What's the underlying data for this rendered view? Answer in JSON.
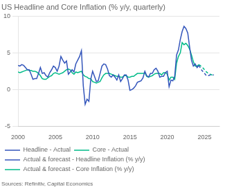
{
  "chart_data": {
    "type": "line",
    "title": "US Headline and Core Inflation (% y/y, quarterly)",
    "annotations": [
      "Sources: Refinitiv, Capital Economics"
    ],
    "xlim": [
      2000,
      2027
    ],
    "xticks": [
      2000,
      2005,
      2010,
      2015,
      2020,
      2025
    ],
    "ylim": [
      -5,
      10
    ],
    "yticks": [
      -5,
      0,
      5,
      10
    ],
    "grid": "y",
    "legend": "bottom",
    "series": [
      {
        "name": "Headline - Actual",
        "color": "#3355bb",
        "line_style": "solid",
        "x": [
          2000.0,
          2000.25,
          2000.5,
          2000.75,
          2001.0,
          2001.25,
          2001.5,
          2001.75,
          2002.0,
          2002.25,
          2002.5,
          2002.75,
          2003.0,
          2003.25,
          2003.5,
          2003.75,
          2004.0,
          2004.25,
          2004.5,
          2004.75,
          2005.0,
          2005.25,
          2005.5,
          2005.75,
          2006.0,
          2006.25,
          2006.5,
          2006.75,
          2007.0,
          2007.25,
          2007.5,
          2007.75,
          2008.0,
          2008.25,
          2008.5,
          2008.75,
          2009.0,
          2009.25,
          2009.5,
          2009.75,
          2010.0,
          2010.25,
          2010.5,
          2010.75,
          2011.0,
          2011.25,
          2011.5,
          2011.75,
          2012.0,
          2012.25,
          2012.5,
          2012.75,
          2013.0,
          2013.25,
          2013.5,
          2013.75,
          2014.0,
          2014.25,
          2014.5,
          2014.75,
          2015.0,
          2015.25,
          2015.5,
          2015.75,
          2016.0,
          2016.25,
          2016.5,
          2016.75,
          2017.0,
          2017.25,
          2017.5,
          2017.75,
          2018.0,
          2018.25,
          2018.5,
          2018.75,
          2019.0,
          2019.25,
          2019.5,
          2019.75,
          2020.0,
          2020.25,
          2020.5,
          2020.75,
          2021.0,
          2021.25,
          2021.5,
          2021.75,
          2022.0,
          2022.25,
          2022.5,
          2022.75,
          2023.0,
          2023.25,
          2023.5,
          2023.75,
          2024.0,
          2024.25
        ],
        "values": [
          3.3,
          3.2,
          3.4,
          3.3,
          3.0,
          2.7,
          2.7,
          2.1,
          1.4,
          1.5,
          1.5,
          2.2,
          3.0,
          2.2,
          2.3,
          1.9,
          1.7,
          2.3,
          2.7,
          3.2,
          3.0,
          2.5,
          3.2,
          4.5,
          4.0,
          3.6,
          3.9,
          2.1,
          2.4,
          2.7,
          2.4,
          3.5,
          4.0,
          4.5,
          5.3,
          0.5,
          -2.0,
          -1.3,
          -1.6,
          1.4,
          2.5,
          1.8,
          1.1,
          1.2,
          2.2,
          3.2,
          3.5,
          3.4,
          2.8,
          1.9,
          1.7,
          2.0,
          1.7,
          1.3,
          2.0,
          1.1,
          1.5,
          2.0,
          2.0,
          1.3,
          -0.1,
          0.0,
          0.2,
          0.5,
          1.0,
          1.1,
          1.2,
          1.6,
          2.5,
          1.9,
          1.7,
          2.2,
          2.2,
          2.7,
          2.9,
          2.5,
          1.7,
          1.8,
          1.8,
          2.3,
          2.5,
          0.4,
          1.3,
          1.2,
          1.8,
          4.7,
          5.4,
          6.8,
          7.9,
          8.6,
          8.3,
          7.7,
          5.8,
          4.0,
          3.2,
          3.5,
          3.0,
          3.3
        ]
      },
      {
        "name": "Core - Actual",
        "color": "#00bb88",
        "line_style": "solid",
        "x": [
          2000.0,
          2000.25,
          2000.5,
          2000.75,
          2001.0,
          2001.25,
          2001.5,
          2001.75,
          2002.0,
          2002.25,
          2002.5,
          2002.75,
          2003.0,
          2003.25,
          2003.5,
          2003.75,
          2004.0,
          2004.25,
          2004.5,
          2004.75,
          2005.0,
          2005.25,
          2005.5,
          2005.75,
          2006.0,
          2006.25,
          2006.5,
          2006.75,
          2007.0,
          2007.25,
          2007.5,
          2007.75,
          2008.0,
          2008.25,
          2008.5,
          2008.75,
          2009.0,
          2009.25,
          2009.5,
          2009.75,
          2010.0,
          2010.25,
          2010.5,
          2010.75,
          2011.0,
          2011.25,
          2011.5,
          2011.75,
          2012.0,
          2012.25,
          2012.5,
          2012.75,
          2013.0,
          2013.25,
          2013.5,
          2013.75,
          2014.0,
          2014.25,
          2014.5,
          2014.75,
          2015.0,
          2015.25,
          2015.5,
          2015.75,
          2016.0,
          2016.25,
          2016.5,
          2016.75,
          2017.0,
          2017.25,
          2017.5,
          2017.75,
          2018.0,
          2018.25,
          2018.5,
          2018.75,
          2019.0,
          2019.25,
          2019.5,
          2019.75,
          2020.0,
          2020.25,
          2020.5,
          2020.75,
          2021.0,
          2021.25,
          2021.5,
          2021.75,
          2022.0,
          2022.25,
          2022.5,
          2022.75,
          2023.0,
          2023.25,
          2023.5,
          2023.75,
          2024.0,
          2024.25
        ],
        "values": [
          2.4,
          2.3,
          2.4,
          2.5,
          2.6,
          2.7,
          2.6,
          2.6,
          2.5,
          2.5,
          2.4,
          2.2,
          1.9,
          1.5,
          1.4,
          1.4,
          1.6,
          1.8,
          1.9,
          2.2,
          2.3,
          2.2,
          2.1,
          2.2,
          2.3,
          2.5,
          2.7,
          2.8,
          2.7,
          2.3,
          2.1,
          2.4,
          2.3,
          2.4,
          2.5,
          2.0,
          1.8,
          1.7,
          1.5,
          1.5,
          1.1,
          1.0,
          0.9,
          1.0,
          1.1,
          1.6,
          2.0,
          2.2,
          2.2,
          2.2,
          2.1,
          2.0,
          1.9,
          1.8,
          1.8,
          1.7,
          1.7,
          1.9,
          1.9,
          1.7,
          1.7,
          1.8,
          1.8,
          2.0,
          2.2,
          2.2,
          2.2,
          2.2,
          2.3,
          1.8,
          1.7,
          1.8,
          1.9,
          2.1,
          2.2,
          2.2,
          2.2,
          2.0,
          2.3,
          2.3,
          2.1,
          1.3,
          1.7,
          1.7,
          1.4,
          3.6,
          4.5,
          5.0,
          6.4,
          6.1,
          6.3,
          6.0,
          5.5,
          4.7,
          3.8,
          3.2,
          3.2,
          3.4
        ]
      },
      {
        "name": "Actual & forecast - Headline Inflation (% y/y)",
        "color": "#3355bb",
        "line_style": "dashed",
        "x": [
          2024.25,
          2024.5,
          2024.75,
          2025.0,
          2025.25,
          2025.5,
          2025.75,
          2026.0,
          2026.25
        ],
        "values": [
          3.3,
          2.8,
          2.5,
          2.2,
          1.9,
          1.9,
          2.0,
          2.0,
          2.0
        ]
      },
      {
        "name": "Actual & forecast - Core Inflation (% y/y)",
        "color": "#00bb88",
        "line_style": "dashed",
        "x": [
          2024.25,
          2024.5,
          2024.75,
          2025.0,
          2025.25,
          2025.5,
          2025.75,
          2026.0,
          2026.25
        ],
        "values": [
          3.4,
          3.2,
          3.0,
          2.7,
          2.4,
          2.2,
          2.1,
          2.0,
          2.0
        ]
      }
    ]
  }
}
